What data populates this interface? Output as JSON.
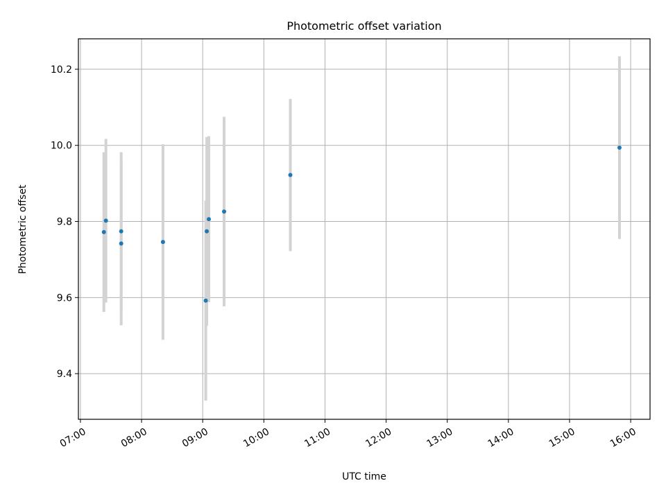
{
  "chart_data": {
    "type": "scatter",
    "title": "Photometric offset variation",
    "xlabel": "UTC time",
    "ylabel": "Photometric offset",
    "x_ticks": [
      "07:00",
      "08:00",
      "09:00",
      "10:00",
      "11:00",
      "12:00",
      "13:00",
      "14:00",
      "15:00",
      "16:00"
    ],
    "y_ticks": [
      "9.4",
      "9.6",
      "9.8",
      "10.0",
      "10.2"
    ],
    "xlim": [
      "06:58",
      "16:19"
    ],
    "ylim": [
      9.28,
      10.28
    ],
    "grid": true,
    "colors": {
      "point": "#1f77b4",
      "errorbar": "#d3d3d3",
      "grid": "#b0b0b0"
    },
    "points": [
      {
        "x": "07:23",
        "y": 9.772,
        "yerr": 0.21
      },
      {
        "x": "07:25",
        "y": 9.802,
        "yerr": 0.215
      },
      {
        "x": "07:40",
        "y": 9.774,
        "yerr": 0.208
      },
      {
        "x": "07:40",
        "y": 9.742,
        "yerr": 0.215
      },
      {
        "x": "08:21",
        "y": 9.746,
        "yerr": 0.257
      },
      {
        "x": "09:03",
        "y": 9.592,
        "yerr": 0.263
      },
      {
        "x": "09:04",
        "y": 9.774,
        "yerr": 0.248
      },
      {
        "x": "09:06",
        "y": 9.806,
        "yerr": 0.218
      },
      {
        "x": "09:21",
        "y": 9.826,
        "yerr": 0.249
      },
      {
        "x": "10:26",
        "y": 9.922,
        "yerr": 0.2
      },
      {
        "x": "15:49",
        "y": 9.994,
        "yerr": 0.24
      }
    ]
  }
}
